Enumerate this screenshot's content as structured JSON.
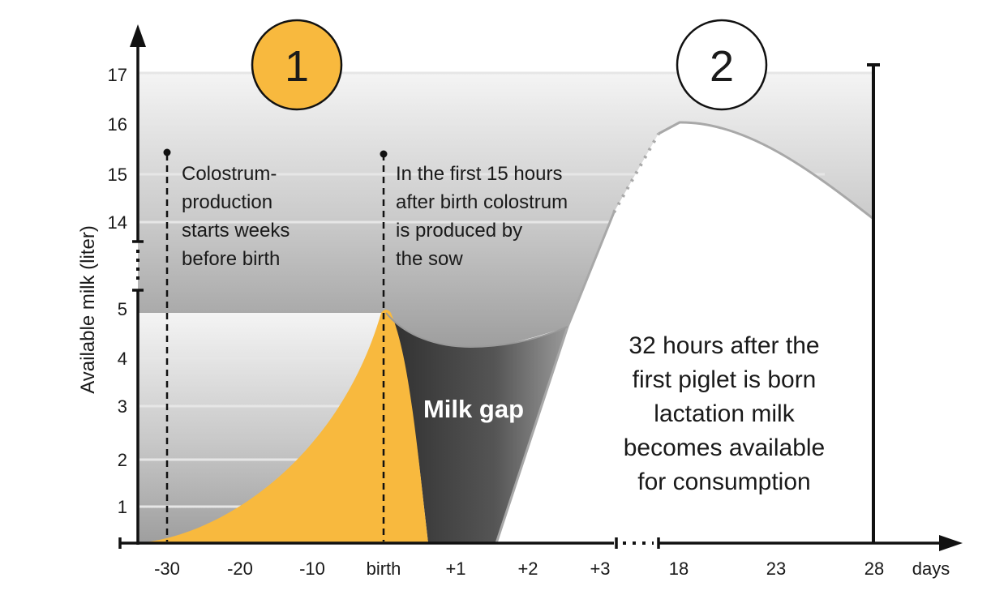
{
  "chart_data": {
    "type": "area",
    "title": "",
    "ylabel": "Available milk (liter)",
    "xlabel": "days",
    "x_ticks": [
      "-30",
      "-20",
      "-10",
      "birth",
      "+1",
      "+2",
      "+3",
      "18",
      "23",
      "28"
    ],
    "y_ticks_lower": [
      "1",
      "2",
      "3",
      "4",
      "5"
    ],
    "y_ticks_upper": [
      "14",
      "15",
      "16",
      "17"
    ],
    "phases": [
      {
        "label": "1",
        "color": "#f8b93e"
      },
      {
        "label": "2",
        "color": "#ffffff"
      }
    ],
    "annotations": {
      "colostrum_start": [
        "Colostrum-",
        "production",
        "starts weeks",
        "before birth"
      ],
      "first_15_hours": [
        "In the first 15 hours",
        "after birth colostrum",
        "is produced by",
        "the sow"
      ],
      "milk_gap": "Milk gap",
      "lactation": [
        "32 hours after the",
        "first piglet is born",
        "lactation milk",
        "becomes available",
        "for consumption"
      ]
    },
    "series": [
      {
        "name": "Colostrum",
        "color": "#f8b93e",
        "peak_at": "birth",
        "peak_value": 5
      },
      {
        "name": "Lactation milk",
        "color": "#a8a8a8",
        "peak_at": "18",
        "peak_value": 16,
        "end_value_at_28": 14
      }
    ]
  },
  "colors": {
    "accent": "#f8b93e",
    "axis": "#111111",
    "gap_dark": "#3a3a3a",
    "curve": "#a8a8a8"
  }
}
